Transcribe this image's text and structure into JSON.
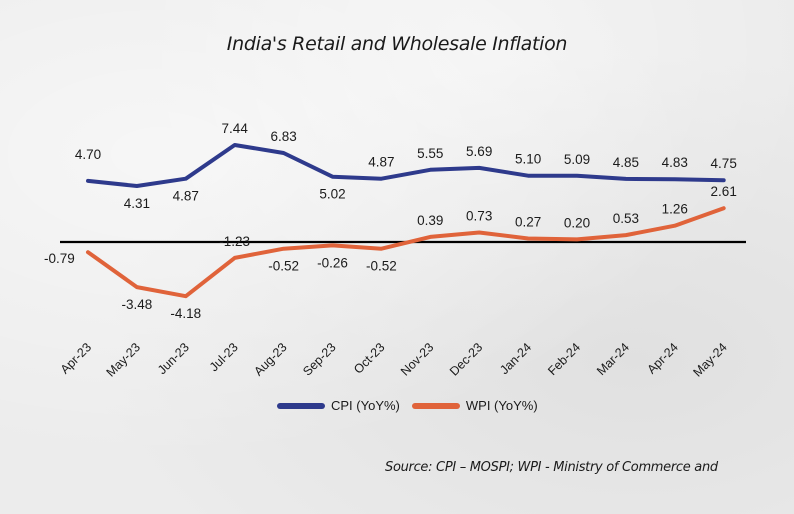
{
  "chart_data": {
    "type": "line",
    "title": "India's Retail and Wholesale Inflation",
    "xlabel": "",
    "ylabel": "",
    "categories": [
      "Apr-23",
      "May-23",
      "Jun-23",
      "Jul-23",
      "Aug-23",
      "Sep-23",
      "Oct-23",
      "Nov-23",
      "Dec-23",
      "Jan-24",
      "Feb-24",
      "Mar-24",
      "Apr-24",
      "May-24"
    ],
    "series": [
      {
        "name": "CPI (YoY%)",
        "color": "#2e3a8c",
        "values": [
          4.7,
          4.31,
          4.87,
          7.44,
          6.83,
          5.02,
          4.87,
          5.55,
          5.69,
          5.1,
          5.09,
          4.85,
          4.83,
          4.75
        ],
        "labels": [
          "4.70",
          "4.31",
          "4.87",
          "7.44",
          "6.83",
          "5.02",
          "4.87",
          "5.55",
          "5.69",
          "5.10",
          "5.09",
          "4.85",
          "4.83",
          "4.75"
        ]
      },
      {
        "name": "WPI (YoY%)",
        "color": "#e0633a",
        "values": [
          -0.79,
          -3.48,
          -4.18,
          -1.23,
          -0.52,
          -0.26,
          -0.52,
          0.39,
          0.73,
          0.27,
          0.2,
          0.53,
          1.26,
          2.61
        ],
        "labels": [
          "-0.79",
          "-3.48",
          "-4.18",
          "-1.23",
          "-0.52",
          "-0.26",
          "-0.52",
          "0.39",
          "0.73",
          "0.27",
          "0.20",
          "0.53",
          "1.26",
          "2.61"
        ]
      }
    ],
    "zero_line": true,
    "grid": false,
    "legend_position": "bottom-center"
  },
  "source_text": "Source: CPI – MOSPI; WPI - Ministry of Commerce and"
}
